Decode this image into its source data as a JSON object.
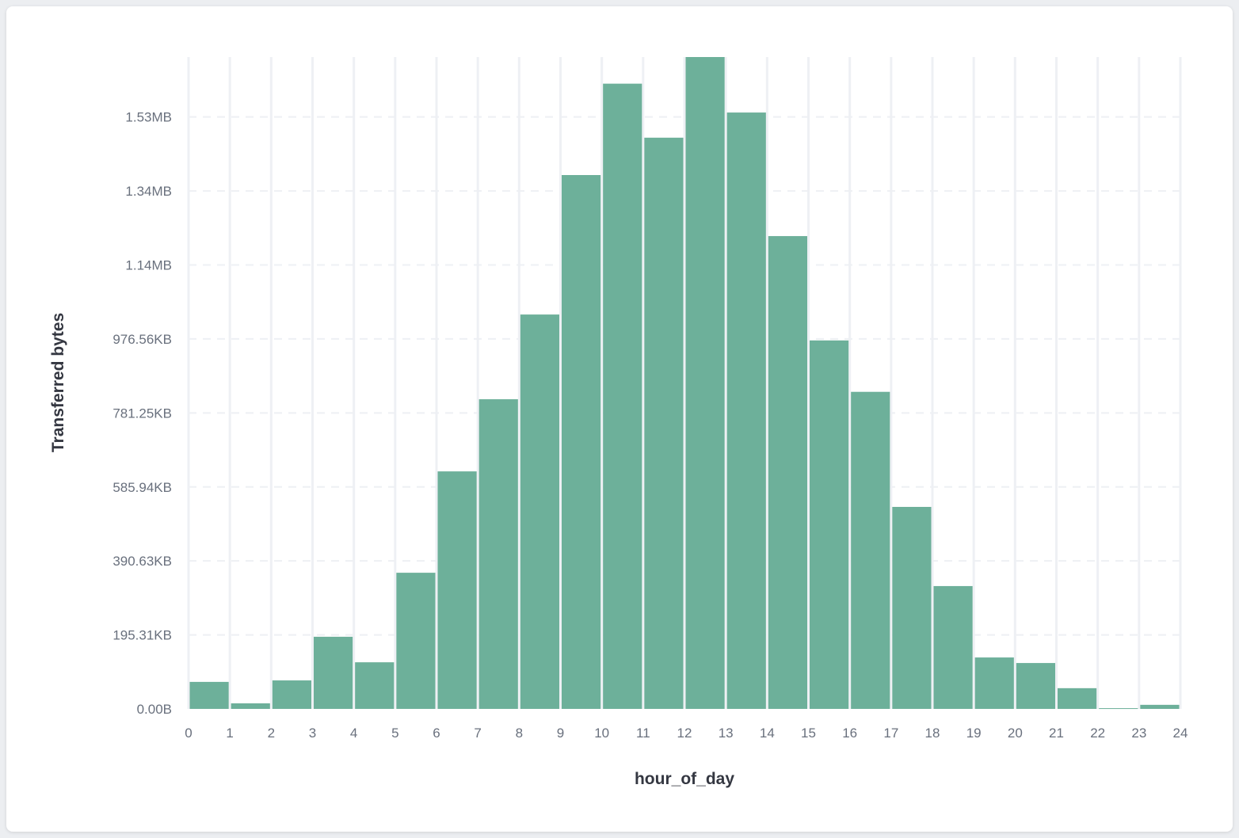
{
  "chart_data": {
    "type": "bar",
    "xlabel": "hour_of_day",
    "ylabel": "Transferred bytes",
    "x_ticks": [
      "0",
      "1",
      "2",
      "3",
      "4",
      "5",
      "6",
      "7",
      "8",
      "9",
      "10",
      "11",
      "12",
      "13",
      "14",
      "15",
      "16",
      "17",
      "18",
      "19",
      "20",
      "21",
      "22",
      "23",
      "24"
    ],
    "xlim": [
      0,
      24
    ],
    "y_ticks": [
      {
        "value": 0,
        "label": "0.00B"
      },
      {
        "value": 200000,
        "label": "195.31KB"
      },
      {
        "value": 400000,
        "label": "390.63KB"
      },
      {
        "value": 600000,
        "label": "585.94KB"
      },
      {
        "value": 800000,
        "label": "781.25KB"
      },
      {
        "value": 1000000,
        "label": "976.56KB"
      },
      {
        "value": 1200000,
        "label": "1.14MB"
      },
      {
        "value": 1400000,
        "label": "1.34MB"
      },
      {
        "value": 1600000,
        "label": "1.53MB"
      }
    ],
    "ylim": [
      0,
      1762000
    ],
    "bins": [
      0,
      1,
      2,
      3,
      4,
      5,
      6,
      7,
      8,
      9,
      10,
      11,
      12,
      13,
      14,
      15,
      16,
      17,
      18,
      19,
      20,
      21,
      22,
      23
    ],
    "values": [
      73000,
      15000,
      77000,
      195000,
      126000,
      368000,
      642000,
      837000,
      1066000,
      1443000,
      1690000,
      1544000,
      1762000,
      1612000,
      1278000,
      996000,
      857000,
      546000,
      332000,
      139000,
      124000,
      56000,
      2000,
      11000
    ],
    "bar_color": "#6db09a",
    "grid": true
  }
}
